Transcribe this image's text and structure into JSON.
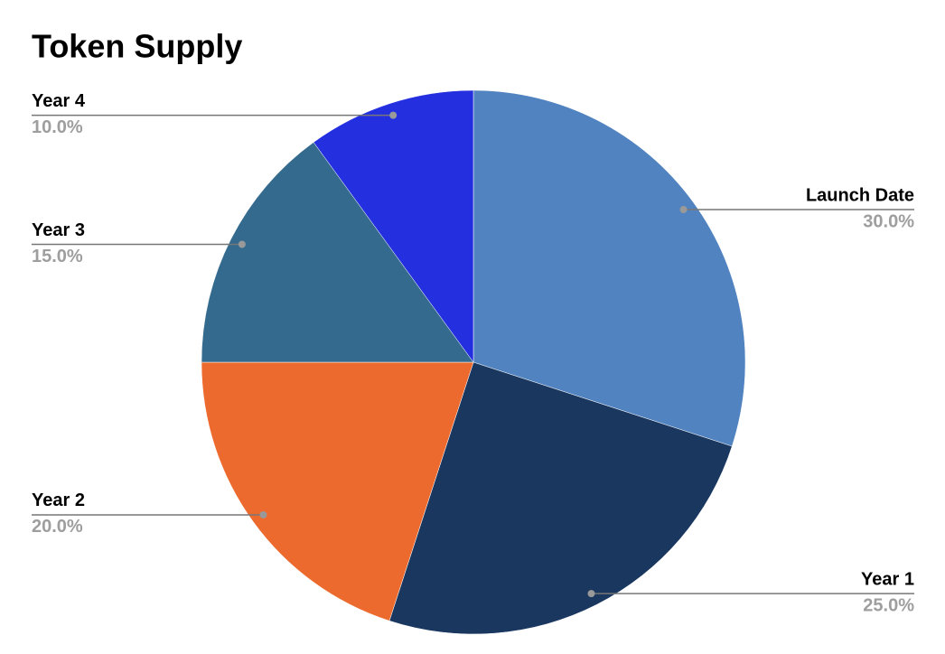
{
  "chart_data": {
    "type": "pie",
    "title": "Token Supply",
    "categories": [
      "Launch Date",
      "Year 1",
      "Year 2",
      "Year 3",
      "Year 4"
    ],
    "values": [
      30,
      25,
      20,
      15,
      10
    ],
    "value_labels": [
      "30.0%",
      "25.0%",
      "20.0%",
      "15.0%",
      "10.0%"
    ],
    "colors": [
      "#5083c0",
      "#1a3760",
      "#ec6a2e",
      "#336a8e",
      "#2430e0"
    ]
  }
}
